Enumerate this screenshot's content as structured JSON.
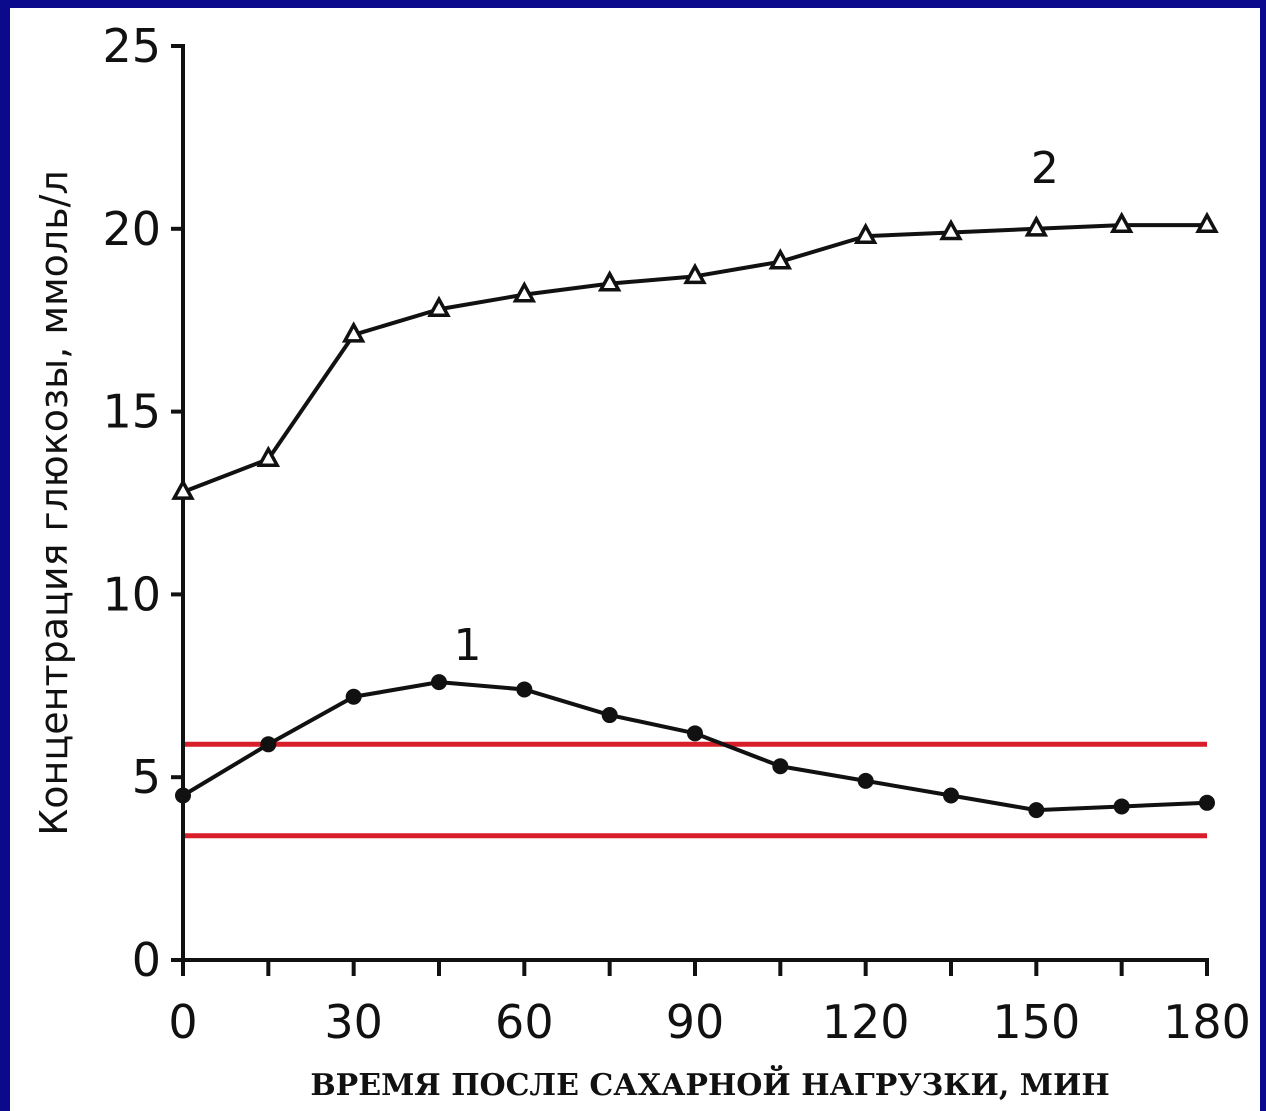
{
  "chart_data": {
    "type": "line",
    "xlabel": "ВРЕМЯ ПОСЛЕ САХАРНОЙ НАГРУЗКИ, МИН",
    "ylabel": "Концентрация глюкозы, ммоль/л",
    "xlim": [
      0,
      180
    ],
    "ylim": [
      0,
      25
    ],
    "x_ticks": [
      "0",
      "30",
      "60",
      "90",
      "120",
      "150",
      "180"
    ],
    "y_ticks": [
      "0",
      "5",
      "10",
      "15",
      "20",
      "25"
    ],
    "grid": false,
    "x": [
      0,
      15,
      30,
      45,
      60,
      75,
      90,
      105,
      120,
      135,
      150,
      165,
      180
    ],
    "series": [
      {
        "name": "1",
        "marker": "filled-circle",
        "color": "#111111",
        "values": [
          4.5,
          5.9,
          7.2,
          7.6,
          7.4,
          6.7,
          6.2,
          5.3,
          4.9,
          4.5,
          4.1,
          4.2,
          4.3
        ]
      },
      {
        "name": "2",
        "marker": "open-triangle",
        "color": "#111111",
        "values": [
          12.8,
          13.7,
          17.1,
          17.8,
          18.2,
          18.5,
          18.7,
          19.1,
          19.8,
          19.9,
          20.0,
          20.1,
          20.1
        ]
      }
    ],
    "reference_lines": [
      {
        "y": 5.9,
        "color": "#d81e2a"
      },
      {
        "y": 3.4,
        "color": "#d81e2a"
      }
    ]
  }
}
